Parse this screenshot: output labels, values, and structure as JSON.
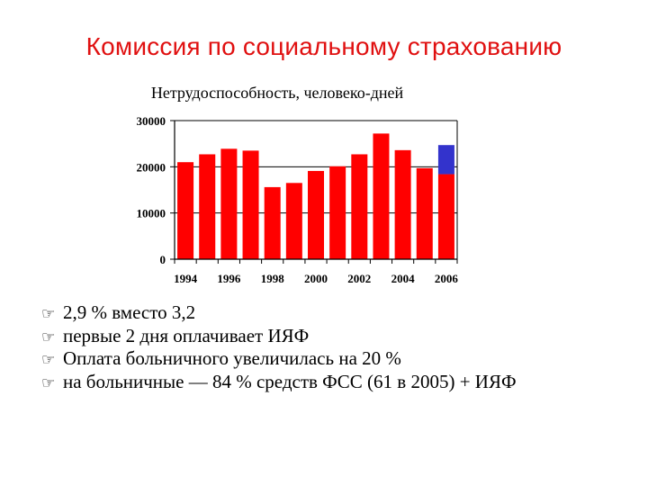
{
  "slide": {
    "title": "Комиссия по социальному страхованию"
  },
  "colors": {
    "title": "#e01010",
    "bar": "#ff0000",
    "bar_top": "#3333cc"
  },
  "chart_data": {
    "type": "bar",
    "title": "Нетрудоспособность, человеко-дней",
    "xlabel": "",
    "ylabel": "",
    "ylim": [
      0,
      30000
    ],
    "y_ticks": [
      "0",
      "10000",
      "20000",
      "30000"
    ],
    "x_tick_labels": [
      "1994",
      "1996",
      "1998",
      "2000",
      "2002",
      "2004",
      "2006"
    ],
    "categories": [
      "1994",
      "1995",
      "1996",
      "1997",
      "1998",
      "1999",
      "2000",
      "2001",
      "2002",
      "2003",
      "2004",
      "2005",
      "2006"
    ],
    "series": [
      {
        "values": [
          21000,
          22700,
          23900,
          23500,
          15600,
          16500,
          19100,
          20100,
          22700,
          27200,
          23600,
          19700,
          18400
        ]
      },
      {
        "values": [
          0,
          0,
          0,
          0,
          0,
          0,
          0,
          0,
          0,
          0,
          0,
          0,
          6300
        ]
      }
    ],
    "grid": true,
    "legend": "none"
  },
  "bullets": {
    "marker_icon": "pointing-hand-icon",
    "items": [
      "2,9 % вместо 3,2",
      "первые 2 дня оплачивает ИЯФ",
      "Оплата больничного увеличилась на 20 %",
      "на больничные — 84 % средств ФСС (61 в 2005) + ИЯФ"
    ]
  }
}
